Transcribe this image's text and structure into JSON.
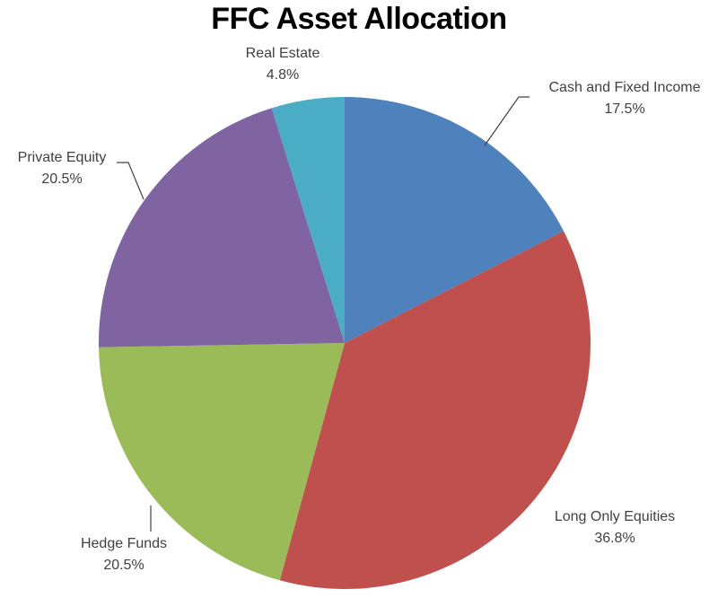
{
  "chart_data": {
    "type": "pie",
    "title": "FFC Asset Allocation",
    "start_angle_deg": 0,
    "direction": "clockwise",
    "slices": [
      {
        "label": "Cash and Fixed Income",
        "value": 17.5,
        "display": "17.5%",
        "color": "#4F81BD"
      },
      {
        "label": "Long Only Equities",
        "value": 36.8,
        "display": "36.8%",
        "color": "#C0504D"
      },
      {
        "label": "Hedge Funds",
        "value": 20.5,
        "display": "20.5%",
        "color": "#9BBB59"
      },
      {
        "label": "Private Equity",
        "value": 20.5,
        "display": "20.5%",
        "color": "#8064A2"
      },
      {
        "label": "Real Estate",
        "value": 4.8,
        "display": "4.8%",
        "color": "#4BACC6"
      }
    ],
    "legend": "none",
    "data_labels": "category name and percentage"
  }
}
